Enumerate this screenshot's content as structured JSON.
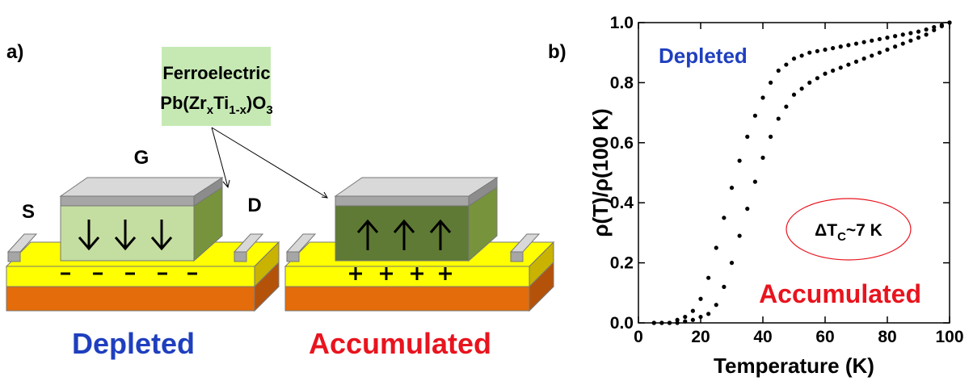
{
  "diagram": {
    "panel_label": "a)",
    "box_line1": "Ferroelectric",
    "box_formula": [
      "Pb(Zr",
      "x",
      "Ti",
      "1-x",
      ")O",
      "3"
    ],
    "gate": "G",
    "source": "S",
    "drain": "D",
    "left_caption": "Depleted",
    "right_caption": "Accumulated"
  },
  "chart_data": {
    "type": "scatter",
    "panel_label": "b)",
    "x_label": "Temperature (K)",
    "y_label": "ρ(T)/ρ(100 K)",
    "xlim": [
      0,
      100
    ],
    "xticks": [
      0,
      20,
      40,
      60,
      80,
      100
    ],
    "ylim": [
      0,
      1
    ],
    "yticks": [
      {
        "value": 0,
        "label": "0.0"
      },
      0.2,
      0.4,
      0.6,
      0.8,
      {
        "value": 1,
        "label": "1.0"
      }
    ],
    "x": [
      5,
      7.5,
      10,
      12.5,
      15,
      17.5,
      20,
      22.5,
      25,
      27.5,
      30,
      32.5,
      35,
      37.5,
      40,
      42.5,
      45,
      47.5,
      50,
      52.5,
      55,
      57.5,
      60,
      62.5,
      65,
      67.5,
      70,
      72.5,
      75,
      77.5,
      80,
      82.5,
      85,
      87.5,
      90,
      92.5,
      95,
      97.5,
      100
    ],
    "series": [
      {
        "name": "Depleted",
        "color": "#000000",
        "label_color": "#1f3fbf",
        "values": [
          0,
          0,
          0,
          0.01,
          0.02,
          0.04,
          0.08,
          0.15,
          0.25,
          0.35,
          0.45,
          0.54,
          0.62,
          0.69,
          0.75,
          0.8,
          0.84,
          0.86,
          0.88,
          0.89,
          0.9,
          0.905,
          0.91,
          0.915,
          0.92,
          0.925,
          0.93,
          0.935,
          0.94,
          0.945,
          0.95,
          0.955,
          0.96,
          0.965,
          0.97,
          0.977,
          0.985,
          0.992,
          1.0
        ]
      },
      {
        "name": "Accumulated",
        "color": "#000000",
        "label_color": "#e8141e",
        "values": [
          0,
          0,
          0,
          0,
          0.005,
          0.01,
          0.02,
          0.03,
          0.06,
          0.12,
          0.2,
          0.29,
          0.38,
          0.47,
          0.55,
          0.62,
          0.68,
          0.72,
          0.76,
          0.78,
          0.8,
          0.815,
          0.83,
          0.84,
          0.85,
          0.86,
          0.87,
          0.88,
          0.89,
          0.9,
          0.91,
          0.92,
          0.93,
          0.94,
          0.95,
          0.96,
          0.975,
          0.988,
          1.0
        ]
      }
    ],
    "annotation": [
      "ΔT",
      "C",
      "~7 K"
    ]
  }
}
